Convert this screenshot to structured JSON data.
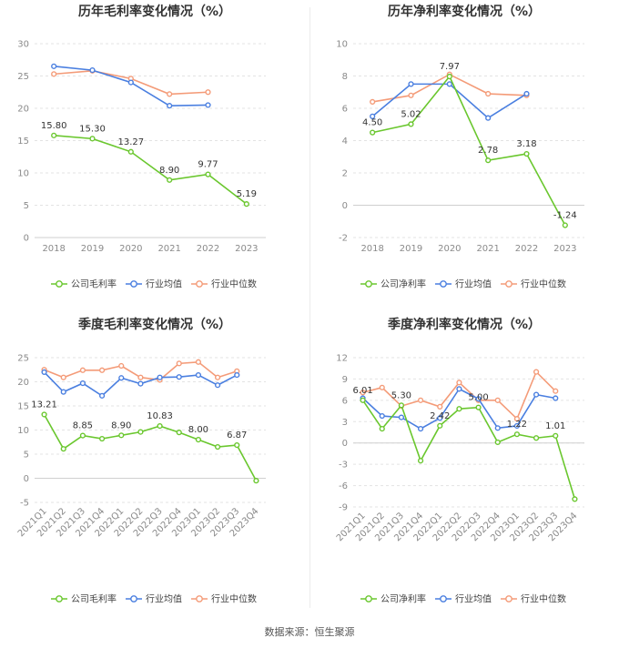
{
  "source": "数据来源：恒生聚源",
  "legend_labels": {
    "gross": [
      "公司毛利率",
      "行业均值",
      "行业中位数"
    ],
    "net": [
      "公司净利率",
      "行业均值",
      "行业中位数"
    ]
  },
  "colors": {
    "company": "#6ac72e",
    "industry_avg": "#4a7fe0",
    "industry_median": "#f49b78"
  },
  "chart_data": [
    {
      "type": "line",
      "title": "历年毛利率变化情况（%）",
      "categories": [
        "2018",
        "2019",
        "2020",
        "2021",
        "2022",
        "2023"
      ],
      "ylim": [
        0,
        30
      ],
      "yticks": [
        0,
        5,
        10,
        15,
        20,
        25,
        30
      ],
      "grid": true,
      "legend": "bottom",
      "series": [
        {
          "name": "公司毛利率",
          "values": [
            15.8,
            15.3,
            13.27,
            8.9,
            9.77,
            5.19
          ],
          "labels": [
            "15.80",
            "15.30",
            "13.27",
            "8.90",
            "9.77",
            "5.19"
          ]
        },
        {
          "name": "行业均值",
          "values": [
            26.5,
            25.9,
            24.0,
            20.4,
            20.5,
            null
          ]
        },
        {
          "name": "行业中位数",
          "values": [
            25.3,
            25.8,
            24.6,
            22.2,
            22.5,
            null
          ]
        }
      ]
    },
    {
      "type": "line",
      "title": "历年净利率变化情况（%）",
      "categories": [
        "2018",
        "2019",
        "2020",
        "2021",
        "2022",
        "2023"
      ],
      "ylim": [
        -2,
        10
      ],
      "yticks": [
        -2,
        0,
        2,
        4,
        6,
        8,
        10
      ],
      "grid": true,
      "legend": "bottom",
      "series": [
        {
          "name": "公司净利率",
          "values": [
            4.5,
            5.02,
            7.97,
            2.78,
            3.18,
            -1.24
          ],
          "labels": [
            "4.50",
            "5.02",
            "7.97",
            "2.78",
            "3.18",
            "-1.24"
          ]
        },
        {
          "name": "行业均值",
          "values": [
            5.5,
            7.5,
            7.5,
            5.4,
            6.9,
            null
          ]
        },
        {
          "name": "行业中位数",
          "values": [
            6.4,
            6.8,
            8.1,
            6.9,
            6.8,
            null
          ]
        }
      ]
    },
    {
      "type": "line",
      "title": "季度毛利率变化情况（%）",
      "categories": [
        "2021Q1",
        "2021Q2",
        "2021Q3",
        "2021Q4",
        "2022Q1",
        "2022Q2",
        "2022Q3",
        "2022Q4",
        "2023Q1",
        "2023Q2",
        "2023Q3",
        "2023Q4"
      ],
      "ylim": [
        -5,
        25
      ],
      "yticks": [
        -5,
        0,
        5,
        10,
        15,
        20,
        25
      ],
      "grid": true,
      "legend": "bottom",
      "series": [
        {
          "name": "公司毛利率",
          "values": [
            13.21,
            6.1,
            8.85,
            8.2,
            8.9,
            9.6,
            10.83,
            9.5,
            8.0,
            6.5,
            6.87,
            -0.5
          ],
          "labels": [
            "13.21",
            "",
            "8.85",
            "",
            "8.90",
            "",
            "10.83",
            "",
            "8.00",
            "",
            "6.87",
            ""
          ]
        },
        {
          "name": "行业均值",
          "values": [
            22.0,
            17.9,
            19.7,
            17.1,
            20.8,
            19.6,
            20.9,
            21.0,
            21.4,
            19.3,
            21.4,
            null
          ]
        },
        {
          "name": "行业中位数",
          "values": [
            22.5,
            20.9,
            22.4,
            22.4,
            23.3,
            20.9,
            20.4,
            23.8,
            24.1,
            20.9,
            22.2,
            null
          ]
        }
      ]
    },
    {
      "type": "line",
      "title": "季度净利率变化情况（%）",
      "categories": [
        "2021Q1",
        "2021Q2",
        "2021Q3",
        "2021Q4",
        "2022Q1",
        "2022Q2",
        "2022Q3",
        "2022Q4",
        "2023Q1",
        "2023Q2",
        "2023Q3",
        "2023Q4"
      ],
      "ylim": [
        -9,
        12
      ],
      "yticks": [
        -9,
        -6,
        -3,
        0,
        3,
        6,
        9,
        12
      ],
      "grid": true,
      "legend": "bottom",
      "series": [
        {
          "name": "公司净利率",
          "values": [
            6.01,
            2.0,
            5.3,
            -2.5,
            2.42,
            4.8,
            5.0,
            0.1,
            1.22,
            0.7,
            1.01,
            -7.9
          ],
          "labels": [
            "6.01",
            "",
            "5.30",
            "",
            "2.42",
            "",
            "5.00",
            "",
            "1.22",
            "",
            "1.01",
            ""
          ]
        },
        {
          "name": "行业均值",
          "values": [
            6.3,
            3.8,
            3.6,
            2.0,
            3.5,
            7.6,
            6.2,
            2.1,
            2.4,
            6.8,
            6.3,
            null
          ]
        },
        {
          "name": "行业中位数",
          "values": [
            7.1,
            7.8,
            5.2,
            6.0,
            5.1,
            8.5,
            6.0,
            6.0,
            3.4,
            10.0,
            7.3,
            null
          ]
        }
      ]
    }
  ]
}
